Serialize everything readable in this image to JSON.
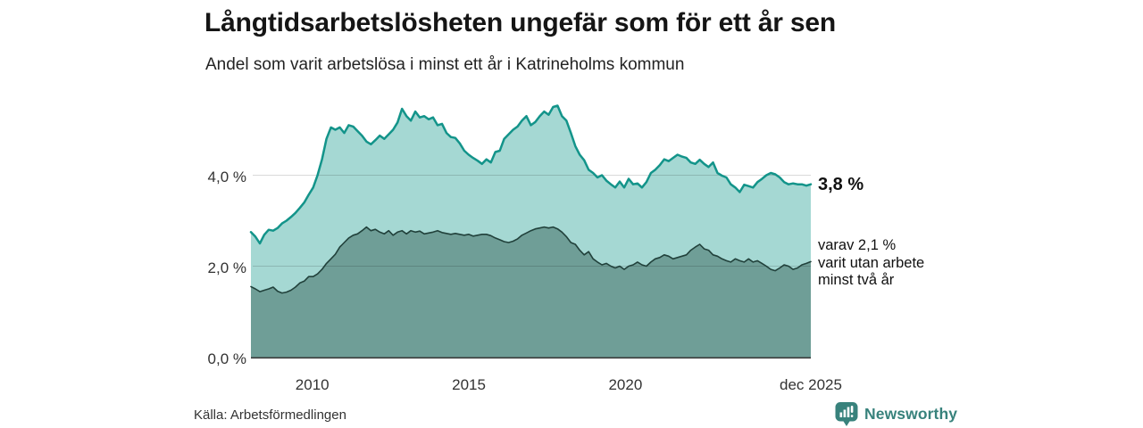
{
  "header": {
    "title": "Långtidsarbetslösheten ungefär som för ett år sen",
    "subtitle": "Andel som varit arbetslösa i minst ett år i Katrineholms kommun"
  },
  "footer": {
    "source": "Källa: Arbetsförmedlingen"
  },
  "branding": {
    "name": "Newsworthy",
    "color": "#38827c",
    "icon": "bar-chart-speech-bubble-icon"
  },
  "annotations": {
    "total_end_label": "3,8 %",
    "part_end_label": "varav 2,1 %\nvarit utan arbete\nminst två år"
  },
  "chart_data": {
    "type": "area",
    "title": "Långtidsarbetslösheten ungefär som för ett år sen",
    "subtitle": "Andel som varit arbetslösa i minst ett år i Katrineholms kommun",
    "unit": "%",
    "x_start": 2008.04,
    "x_end": 2025.92,
    "ylim": [
      0,
      5.9
    ],
    "grid": true,
    "grid_values": [
      2,
      4
    ],
    "grid_color_hex": "#d9d9d9",
    "baseline_color_hex": "#3b3b3b",
    "y_ticks": [
      {
        "label": "0,0 %",
        "value": 0
      },
      {
        "label": "2,0 %",
        "value": 2
      },
      {
        "label": "4,0 %",
        "value": 4
      }
    ],
    "x_ticks": [
      {
        "label": "2010",
        "pos": 2010
      },
      {
        "label": "2015",
        "pos": 2015
      },
      {
        "label": "2020",
        "pos": 2020
      },
      {
        "label": "dec 2025",
        "pos": 2025.92
      }
    ],
    "series": [
      {
        "name": "Andel arbetslösa minst ett år",
        "end_value": 3.8,
        "end_label": "3,8 %",
        "line_color": "#13948a",
        "fill_color": "#a5d8d3",
        "line_width": 2.5,
        "values": [
          2.75,
          2.65,
          2.5,
          2.69,
          2.8,
          2.78,
          2.84,
          2.94,
          3.0,
          3.08,
          3.17,
          3.28,
          3.4,
          3.57,
          3.73,
          4.0,
          4.35,
          4.8,
          5.05,
          5.0,
          5.05,
          4.93,
          5.1,
          5.07,
          4.97,
          4.87,
          4.74,
          4.68,
          4.77,
          4.87,
          4.8,
          4.9,
          5.0,
          5.16,
          5.46,
          5.3,
          5.2,
          5.4,
          5.27,
          5.3,
          5.23,
          5.27,
          5.1,
          5.13,
          4.93,
          4.84,
          4.82,
          4.7,
          4.54,
          4.45,
          4.38,
          4.32,
          4.25,
          4.35,
          4.28,
          4.51,
          4.54,
          4.8,
          4.9,
          5.0,
          5.07,
          5.2,
          5.3,
          5.1,
          5.17,
          5.3,
          5.4,
          5.33,
          5.5,
          5.53,
          5.3,
          5.2,
          4.93,
          4.64,
          4.45,
          4.33,
          4.12,
          4.05,
          3.95,
          4.0,
          3.88,
          3.8,
          3.73,
          3.86,
          3.73,
          3.92,
          3.8,
          3.82,
          3.73,
          3.85,
          4.05,
          4.12,
          4.22,
          4.35,
          4.31,
          4.38,
          4.45,
          4.41,
          4.38,
          4.28,
          4.25,
          4.34,
          4.25,
          4.18,
          4.28,
          4.05,
          3.99,
          3.95,
          3.8,
          3.73,
          3.63,
          3.79,
          3.76,
          3.73,
          3.85,
          3.92,
          4.0,
          4.05,
          4.02,
          3.95,
          3.85,
          3.8,
          3.82,
          3.8,
          3.8,
          3.77,
          3.8
        ]
      },
      {
        "name": "Varav utan arbete minst två år",
        "end_value": 2.1,
        "end_label": "varav 2,1 % varit utan arbete minst två år",
        "line_color": "#21413b",
        "fill_color": "#6f9e97",
        "line_width": 1.6,
        "values": [
          1.55,
          1.5,
          1.44,
          1.47,
          1.5,
          1.54,
          1.45,
          1.41,
          1.43,
          1.47,
          1.54,
          1.63,
          1.67,
          1.77,
          1.77,
          1.83,
          1.93,
          2.06,
          2.16,
          2.26,
          2.42,
          2.52,
          2.62,
          2.68,
          2.71,
          2.78,
          2.86,
          2.78,
          2.81,
          2.75,
          2.71,
          2.78,
          2.68,
          2.75,
          2.78,
          2.71,
          2.78,
          2.75,
          2.77,
          2.71,
          2.73,
          2.75,
          2.78,
          2.74,
          2.72,
          2.7,
          2.72,
          2.7,
          2.68,
          2.7,
          2.66,
          2.68,
          2.7,
          2.7,
          2.67,
          2.62,
          2.58,
          2.54,
          2.52,
          2.55,
          2.6,
          2.68,
          2.73,
          2.78,
          2.82,
          2.84,
          2.86,
          2.84,
          2.86,
          2.82,
          2.75,
          2.65,
          2.52,
          2.48,
          2.35,
          2.25,
          2.32,
          2.16,
          2.09,
          2.03,
          2.06,
          2.0,
          1.96,
          2.0,
          1.93,
          2.0,
          2.03,
          2.09,
          2.03,
          2.0,
          2.09,
          2.16,
          2.19,
          2.25,
          2.22,
          2.16,
          2.19,
          2.22,
          2.25,
          2.35,
          2.42,
          2.48,
          2.38,
          2.35,
          2.25,
          2.22,
          2.16,
          2.12,
          2.09,
          2.16,
          2.12,
          2.09,
          2.16,
          2.09,
          2.12,
          2.06,
          2.0,
          1.93,
          1.9,
          1.96,
          2.03,
          2.0,
          1.93,
          1.96,
          2.03,
          2.06,
          2.1
        ]
      }
    ]
  }
}
